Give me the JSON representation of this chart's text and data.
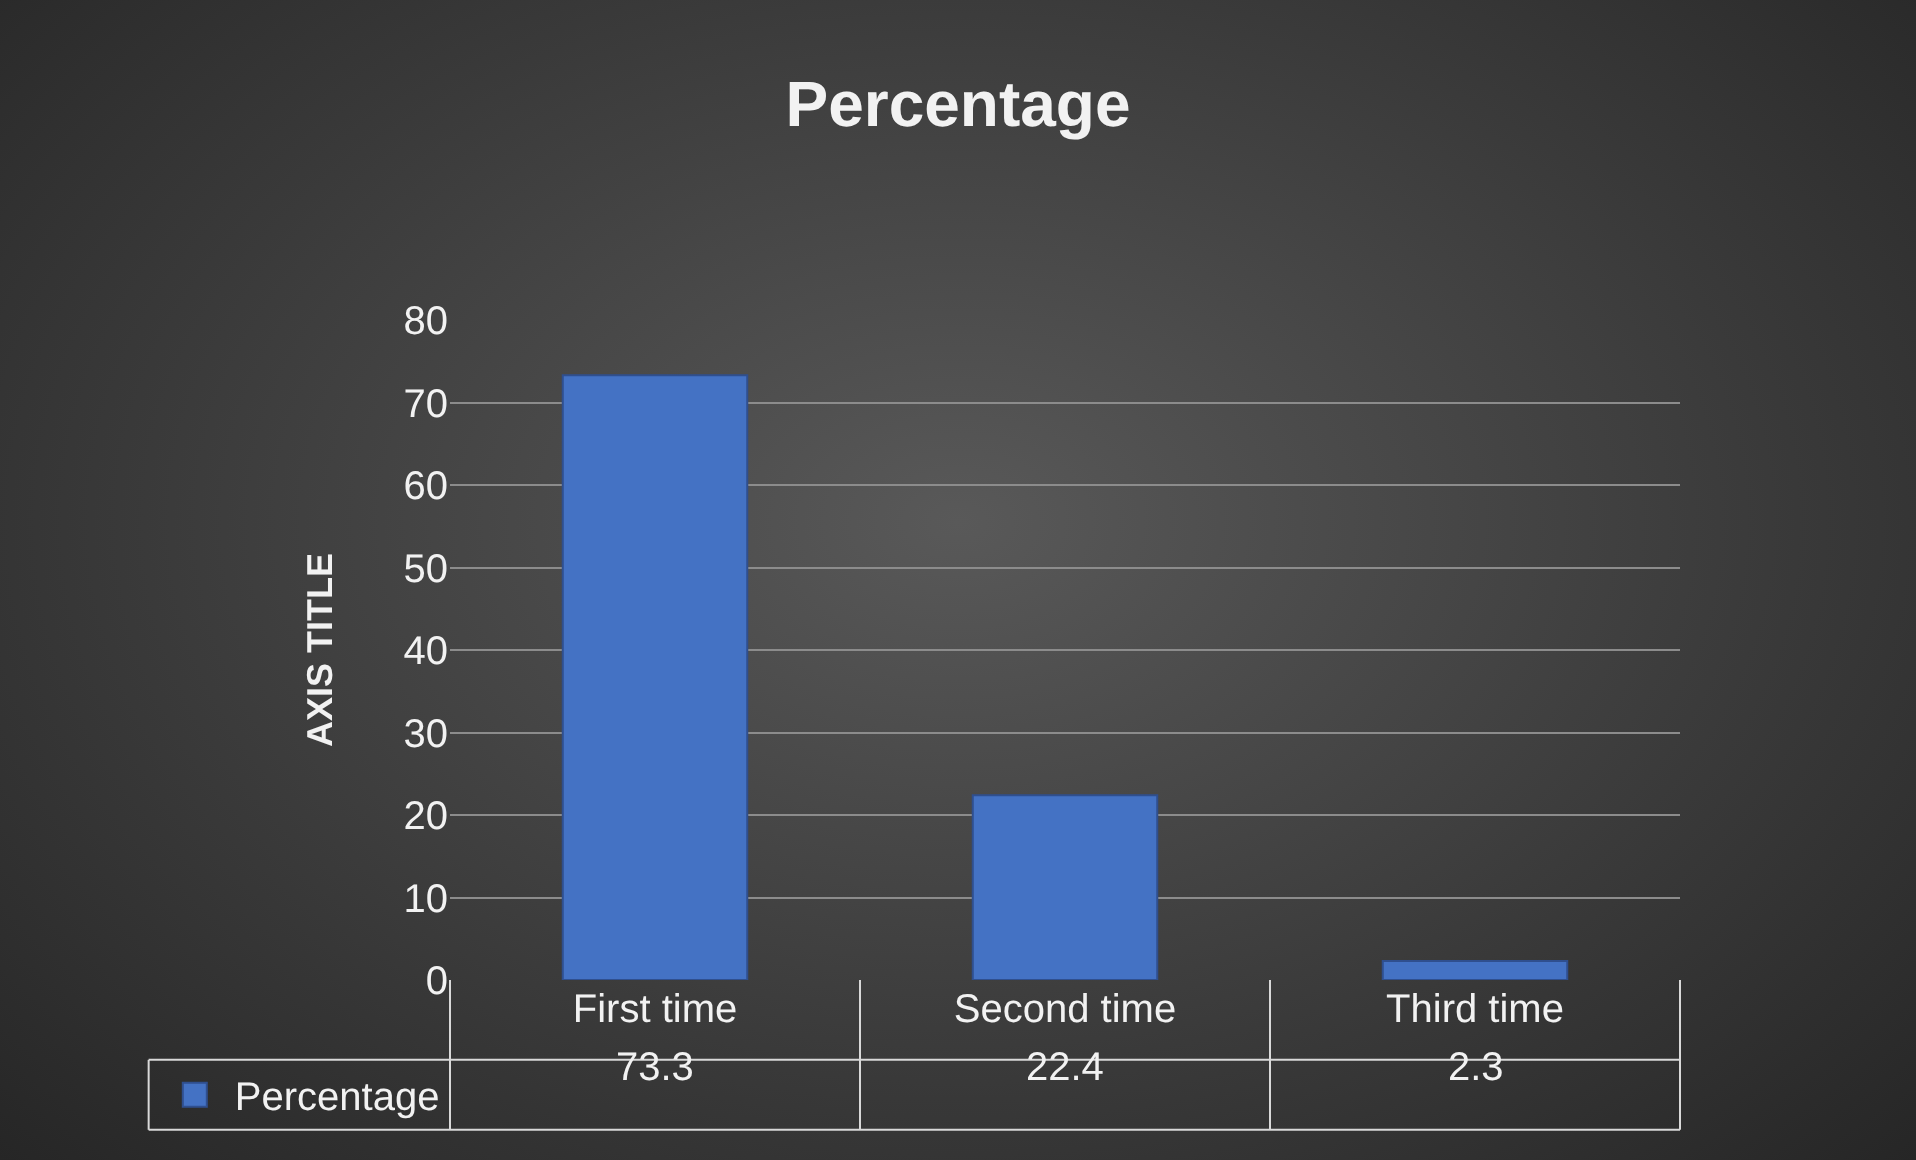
{
  "chart_data": {
    "type": "bar",
    "title": "Percentage",
    "ylabel": "AXIS TITLE",
    "categories": [
      "First time",
      "Second time",
      "Third time"
    ],
    "series": [
      {
        "name": "Percentage",
        "color": "#4472c4",
        "values": [
          73.3,
          22.4,
          2.3
        ]
      }
    ],
    "ylim": [
      0,
      80
    ],
    "yticks": [
      0,
      10,
      20,
      30,
      40,
      50,
      60,
      70,
      80
    ],
    "grid": "y",
    "legend": "bottom left",
    "data_labels": true
  }
}
